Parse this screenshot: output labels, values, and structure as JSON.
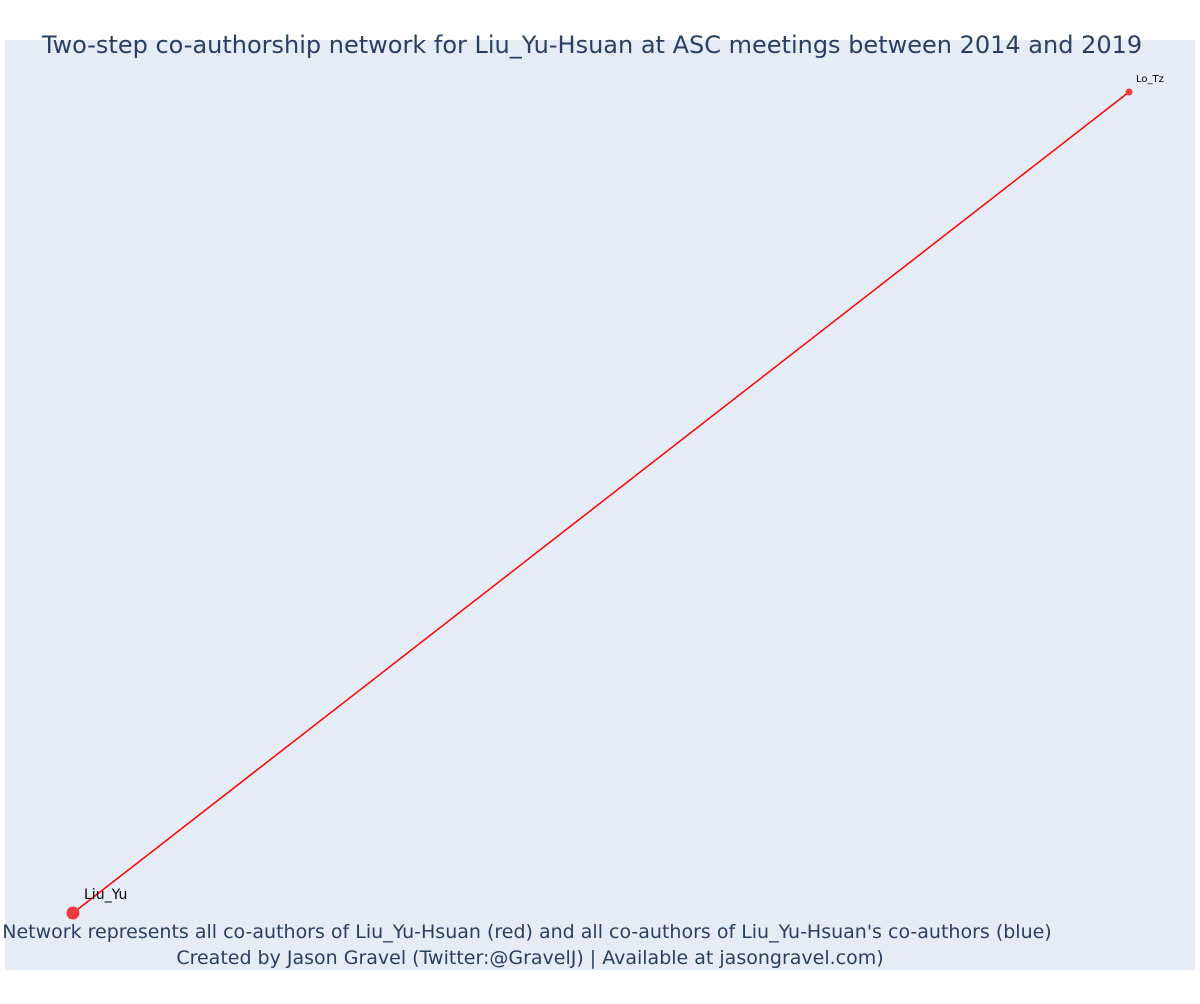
{
  "title": "Two-step co-authorship network for Liu_Yu-Hsuan at ASC meetings between 2014 and 2019",
  "annotation": {
    "line1": "Network represents all co-authors of Liu_Yu-Hsuan (red) and all co-authors of Liu_Yu-Hsuan's co-authors (blue)",
    "line2": "Created by Jason Gravel (Twitter:@GravelJ) | Available at jasongravel.com)"
  },
  "colors": {
    "plot_background": "#e5ecf6",
    "title_text": "#2a3f5f",
    "edge": "#ff0000",
    "node_first_degree": "#ef3b3b",
    "node_label": "#000000"
  },
  "chart_data": {
    "type": "network",
    "title": "Two-step co-authorship network for Liu_Yu-Hsuan at ASC meetings between 2014 and 2019",
    "nodes": [
      {
        "id": "Liu_Yu",
        "label": "Liu_Yu",
        "group": "focal"
      },
      {
        "id": "Lo_Tz",
        "label": "Lo_Tz",
        "group": "co-author"
      }
    ],
    "edges": [
      {
        "source": "Liu_Yu",
        "target": "Lo_Tz"
      }
    ],
    "legend": "none",
    "grid": false
  }
}
